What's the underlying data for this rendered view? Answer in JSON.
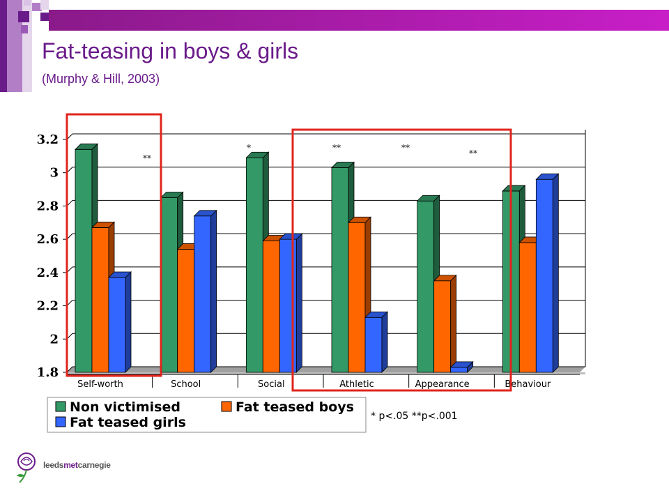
{
  "slide": {
    "title": "Fat-teasing in boys & girls",
    "subtitle": "(Murphy & Hill, 2003)",
    "accent_color": "#6a1b8a",
    "footnote": "* p<.05  **p<.001",
    "logo": {
      "prefix": "leeds",
      "middle": "met",
      "suffix": "carnegie",
      "icon": "rose-logo-icon"
    }
  },
  "chart_data": {
    "type": "bar",
    "title": "",
    "xlabel": "",
    "ylabel": "",
    "ylim": [
      1.8,
      3.2
    ],
    "yticks": [
      "1.8",
      "2",
      "2.2",
      "2.4",
      "2.6",
      "2.8",
      "3",
      "3.2"
    ],
    "grid": true,
    "legend_position": "bottom-left",
    "categories": [
      "Self-worth",
      "School",
      "Social",
      "Athletic",
      "Appearance",
      "Behaviour"
    ],
    "series": [
      {
        "name": "Non victimised",
        "color": "#339966",
        "values": [
          3.14,
          2.85,
          3.09,
          3.03,
          2.83,
          2.89
        ]
      },
      {
        "name": "Fat teased boys",
        "color": "#ff6600",
        "values": [
          2.67,
          2.54,
          2.59,
          2.7,
          2.35,
          2.58
        ]
      },
      {
        "name": "Fat teased girls",
        "color": "#3366ff",
        "values": [
          2.37,
          2.74,
          2.6,
          2.13,
          1.83,
          2.96
        ]
      }
    ],
    "significance": [
      "**",
      "*",
      "**",
      "**",
      "**",
      ""
    ],
    "highlight_colors": [
      "#e0241c"
    ]
  }
}
